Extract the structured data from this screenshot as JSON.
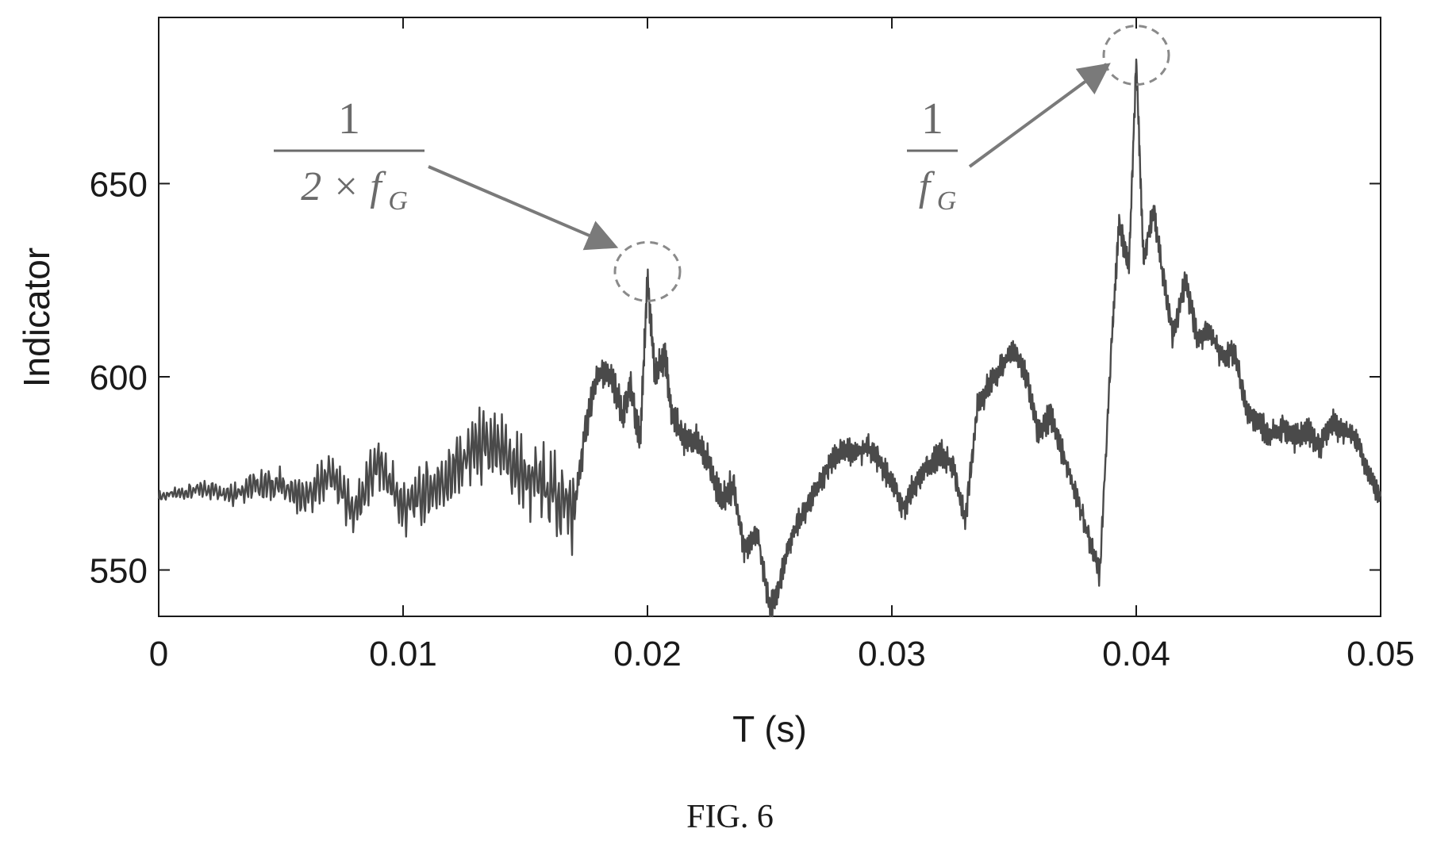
{
  "chart_data": {
    "type": "line",
    "xlabel": "T (s)",
    "ylabel": "Indicator",
    "xlim": [
      0,
      0.05
    ],
    "ylim": [
      538,
      693
    ],
    "xticks": [
      0,
      0.01,
      0.02,
      0.03,
      0.04,
      0.05
    ],
    "xtick_labels": [
      "0",
      "0.01",
      "0.02",
      "0.03",
      "0.04",
      "0.05"
    ],
    "yticks": [
      550,
      600,
      650
    ],
    "ytick_labels": [
      "550",
      "600",
      "650"
    ],
    "grid": false,
    "series": [
      {
        "color": "#4a4a4a",
        "x": [
          0,
          0.001,
          0.002,
          0.003,
          0.004,
          0.005,
          0.006,
          0.007,
          0.008,
          0.009,
          0.01,
          0.011,
          0.012,
          0.013,
          0.014,
          0.015,
          0.016,
          0.017,
          0.0175,
          0.018,
          0.0185,
          0.019,
          0.0193,
          0.0197,
          0.02,
          0.0203,
          0.0207,
          0.021,
          0.0215,
          0.022,
          0.0225,
          0.023,
          0.0235,
          0.024,
          0.0245,
          0.025,
          0.0253,
          0.0257,
          0.026,
          0.0265,
          0.027,
          0.0275,
          0.028,
          0.0285,
          0.029,
          0.0295,
          0.03,
          0.0305,
          0.031,
          0.0315,
          0.032,
          0.0325,
          0.033,
          0.0335,
          0.034,
          0.0345,
          0.035,
          0.0355,
          0.036,
          0.0365,
          0.037,
          0.0375,
          0.038,
          0.0385,
          0.039,
          0.0393,
          0.0397,
          0.04,
          0.0403,
          0.0407,
          0.041,
          0.0415,
          0.042,
          0.0425,
          0.043,
          0.0435,
          0.044,
          0.0445,
          0.045,
          0.0455,
          0.046,
          0.0465,
          0.047,
          0.0475,
          0.048,
          0.0485,
          0.049,
          0.0495,
          0.05
        ],
        "y": [
          569,
          570,
          571,
          570,
          572,
          572,
          568,
          575,
          565,
          578,
          566,
          570,
          575,
          582,
          580,
          574,
          571,
          565,
          588,
          601,
          600,
          590,
          598,
          583,
          626,
          600,
          606,
          590,
          584,
          583,
          578,
          568,
          572,
          555,
          560,
          540,
          544,
          555,
          560,
          566,
          572,
          578,
          582,
          580,
          582,
          578,
          572,
          566,
          573,
          577,
          580,
          577,
          563,
          592,
          598,
          603,
          607,
          600,
          585,
          590,
          580,
          570,
          560,
          549,
          610,
          640,
          628,
          682,
          630,
          644,
          630,
          610,
          625,
          610,
          612,
          605,
          607,
          592,
          588,
          585,
          587,
          584,
          586,
          582,
          588,
          586,
          584,
          575,
          569
        ]
      }
    ],
    "annotations": [
      {
        "numerator": "1",
        "denominator": "2 × f",
        "subscript": "G",
        "x": 0.02,
        "y": 626
      },
      {
        "numerator": "1",
        "denominator": "f",
        "subscript": "G",
        "x": 0.04,
        "y": 682
      }
    ]
  },
  "caption": "FIG. 6"
}
